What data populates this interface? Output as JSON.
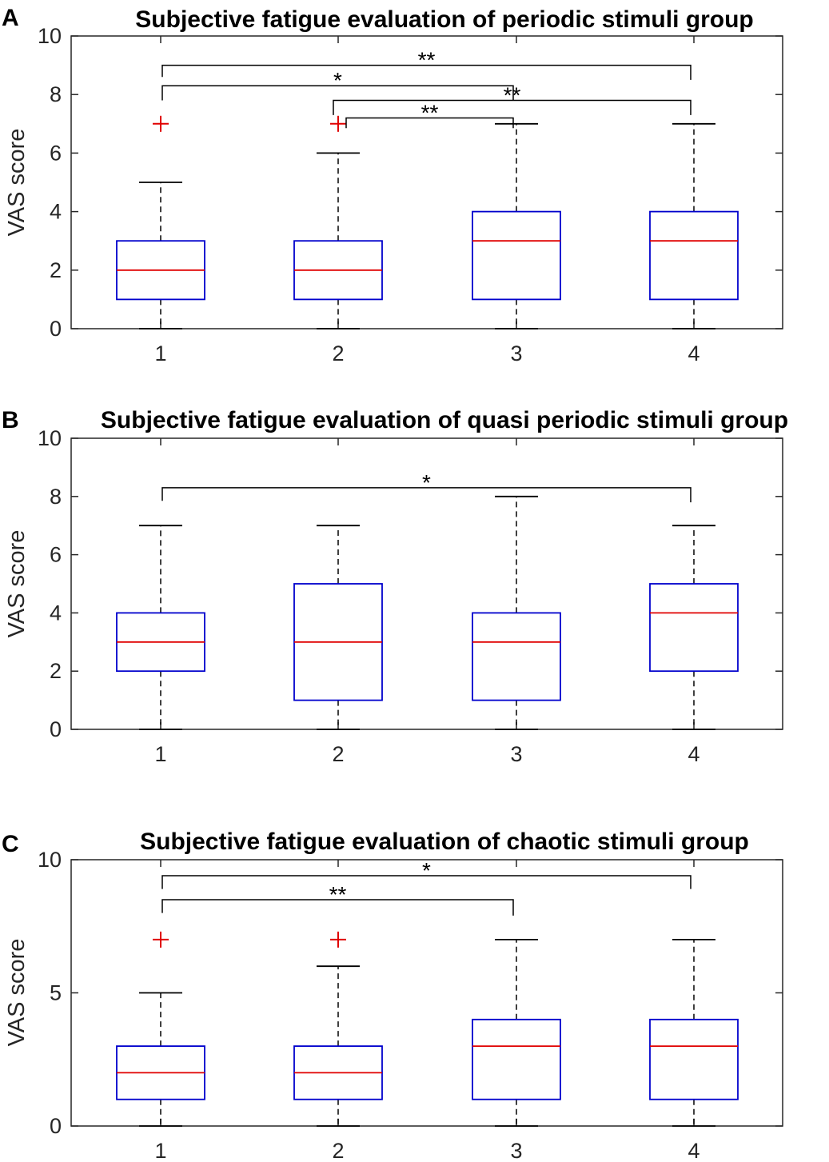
{
  "chart_data": [
    {
      "panel": "A",
      "type": "box",
      "title": "Subjective fatigue evaluation of periodic stimuli group",
      "ylabel": "VAS score",
      "xlabel": "",
      "ylim": [
        0,
        10
      ],
      "yticks": [
        0,
        2,
        4,
        6,
        8,
        10
      ],
      "categories": [
        "1",
        "2",
        "3",
        "4"
      ],
      "boxes": [
        {
          "min": 0,
          "q1": 1,
          "median": 2,
          "q3": 3,
          "max": 5,
          "outliers": [
            7
          ]
        },
        {
          "min": 0,
          "q1": 1,
          "median": 2,
          "q3": 3,
          "max": 6,
          "outliers": [
            7
          ]
        },
        {
          "min": 0,
          "q1": 1,
          "median": 3,
          "q3": 4,
          "max": 7,
          "outliers": []
        },
        {
          "min": 0,
          "q1": 1,
          "median": 3,
          "q3": 4,
          "max": 7,
          "outliers": []
        }
      ],
      "significance": [
        {
          "from": 1,
          "to": 4,
          "label": "**",
          "y": 9.0,
          "left_end": 8.6,
          "right_end": 8.5
        },
        {
          "from": 1,
          "to": 3,
          "label": "*",
          "y": 8.3,
          "left_end": 7.8,
          "right_end": 7.8
        },
        {
          "from": 2,
          "to": 4,
          "label": "**",
          "y": 7.8,
          "left_end": 7.3,
          "right_end": 7.3
        },
        {
          "from": 2,
          "to": 3,
          "label": "**",
          "y": 7.2,
          "left_end": 6.85,
          "right_end": 6.85
        }
      ]
    },
    {
      "panel": "B",
      "type": "box",
      "title": "Subjective fatigue evaluation of quasi periodic stimuli group",
      "ylabel": "VAS score",
      "xlabel": "",
      "ylim": [
        0,
        10
      ],
      "yticks": [
        0,
        2,
        4,
        6,
        8,
        10
      ],
      "categories": [
        "1",
        "2",
        "3",
        "4"
      ],
      "boxes": [
        {
          "min": 0,
          "q1": 2,
          "median": 3,
          "q3": 4,
          "max": 7,
          "outliers": []
        },
        {
          "min": 0,
          "q1": 1,
          "median": 3,
          "q3": 5,
          "max": 7,
          "outliers": []
        },
        {
          "min": 0,
          "q1": 1,
          "median": 3,
          "q3": 4,
          "max": 8,
          "outliers": []
        },
        {
          "min": 0,
          "q1": 2,
          "median": 4,
          "q3": 5,
          "max": 7,
          "outliers": []
        }
      ],
      "significance": [
        {
          "from": 1,
          "to": 4,
          "label": "*",
          "y": 8.3,
          "left_end": 7.85,
          "right_end": 7.8
        }
      ]
    },
    {
      "panel": "C",
      "type": "box",
      "title": "Subjective fatigue evaluation of chaotic stimuli group",
      "ylabel": "VAS score",
      "xlabel": "",
      "ylim": [
        0,
        10
      ],
      "yticks": [
        0,
        5,
        10
      ],
      "categories": [
        "1",
        "2",
        "3",
        "4"
      ],
      "boxes": [
        {
          "min": 0,
          "q1": 1,
          "median": 2,
          "q3": 3,
          "max": 5,
          "outliers": [
            7
          ]
        },
        {
          "min": 0,
          "q1": 1,
          "median": 2,
          "q3": 3,
          "max": 6,
          "outliers": [
            7
          ]
        },
        {
          "min": 0,
          "q1": 1,
          "median": 3,
          "q3": 4,
          "max": 7,
          "outliers": []
        },
        {
          "min": 0,
          "q1": 1,
          "median": 3,
          "q3": 4,
          "max": 7,
          "outliers": []
        }
      ],
      "significance": [
        {
          "from": 1,
          "to": 4,
          "label": "*",
          "y": 9.4,
          "left_end": 8.9,
          "right_end": 8.9
        },
        {
          "from": 1,
          "to": 3,
          "label": "**",
          "y": 8.5,
          "left_end": 8.0,
          "right_end": 7.9
        }
      ]
    }
  ]
}
